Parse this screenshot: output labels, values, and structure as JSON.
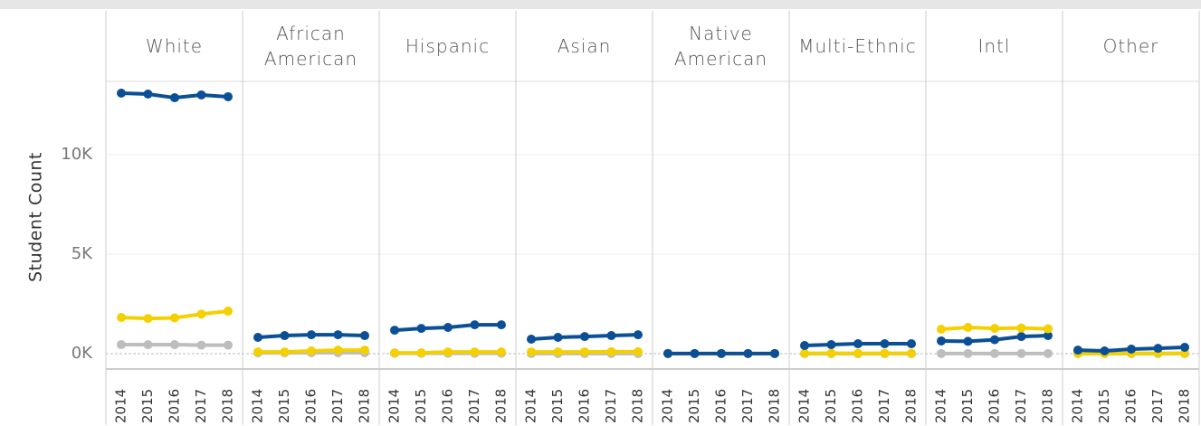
{
  "chart_data": {
    "type": "line",
    "y_label": "Student Count",
    "categories": [
      "2014",
      "2015",
      "2016",
      "2017",
      "2018"
    ],
    "ylim": [
      -770,
      13680
    ],
    "yticks": [
      {
        "value": 0,
        "label": "0K"
      },
      {
        "value": 5000,
        "label": "5K"
      },
      {
        "value": 10000,
        "label": "10K"
      }
    ],
    "grid": true,
    "panels": [
      {
        "title": "White",
        "series": [
          {
            "color": "#bdbdbd",
            "values": [
              455,
              450,
              455,
              430,
              430
            ]
          },
          {
            "color": "#f5d000",
            "values": [
              1820,
              1770,
              1800,
              1990,
              2140
            ]
          },
          {
            "color": "#0b4f96",
            "values": [
              13090,
              13045,
              12860,
              13000,
              12910
            ]
          }
        ]
      },
      {
        "title": "African American",
        "series": [
          {
            "color": "#bdbdbd",
            "values": [
              45,
              45,
              50,
              50,
              50
            ]
          },
          {
            "color": "#f5d000",
            "values": [
              90,
              90,
              140,
              180,
              180
            ]
          },
          {
            "color": "#0b4f96",
            "values": [
              820,
              910,
              950,
              950,
              910
            ]
          }
        ]
      },
      {
        "title": "Hispanic",
        "series": [
          {
            "color": "#bdbdbd",
            "values": [
              20,
              20,
              20,
              20,
              20
            ]
          },
          {
            "color": "#f5d000",
            "values": [
              45,
              45,
              90,
              90,
              90
            ]
          },
          {
            "color": "#0b4f96",
            "values": [
              1180,
              1270,
              1320,
              1450,
              1450
            ]
          }
        ]
      },
      {
        "title": "Asian",
        "series": [
          {
            "color": "#bdbdbd",
            "values": [
              10,
              10,
              10,
              10,
              10
            ]
          },
          {
            "color": "#f5d000",
            "values": [
              90,
              90,
              90,
              100,
              100
            ]
          },
          {
            "color": "#0b4f96",
            "values": [
              730,
              820,
              860,
              910,
              950
            ]
          }
        ]
      },
      {
        "title": "Native American",
        "series": [
          {
            "color": "#bdbdbd",
            "values": [
              3,
              3,
              3,
              3,
              3
            ]
          },
          {
            "color": "#f5d000",
            "values": [
              5,
              5,
              5,
              5,
              5
            ]
          },
          {
            "color": "#0b4f96",
            "values": [
              10,
              10,
              10,
              10,
              10
            ]
          }
        ]
      },
      {
        "title": "Multi-Ethnic",
        "series": [
          {
            "color": "#bdbdbd",
            "values": [
              5,
              5,
              5,
              5,
              5
            ]
          },
          {
            "color": "#f5d000",
            "values": [
              20,
              20,
              20,
              20,
              20
            ]
          },
          {
            "color": "#0b4f96",
            "values": [
              410,
              455,
              500,
              500,
              500
            ]
          }
        ]
      },
      {
        "title": "Intl",
        "series": [
          {
            "color": "#bdbdbd",
            "values": [
              10,
              10,
              10,
              10,
              10
            ]
          },
          {
            "color": "#0b4f96",
            "values": [
              640,
              620,
              700,
              860,
              910
            ]
          },
          {
            "color": "#f5d000",
            "values": [
              1230,
              1320,
              1270,
              1290,
              1250
            ]
          }
        ]
      },
      {
        "title": "Other",
        "series": [
          {
            "color": "#bdbdbd",
            "values": [
              5,
              5,
              5,
              5,
              5
            ]
          },
          {
            "color": "#f5d000",
            "values": [
              10,
              10,
              20,
              20,
              20
            ]
          },
          {
            "color": "#0b4f96",
            "values": [
              180,
              140,
              230,
              270,
              320
            ]
          }
        ]
      }
    ]
  }
}
